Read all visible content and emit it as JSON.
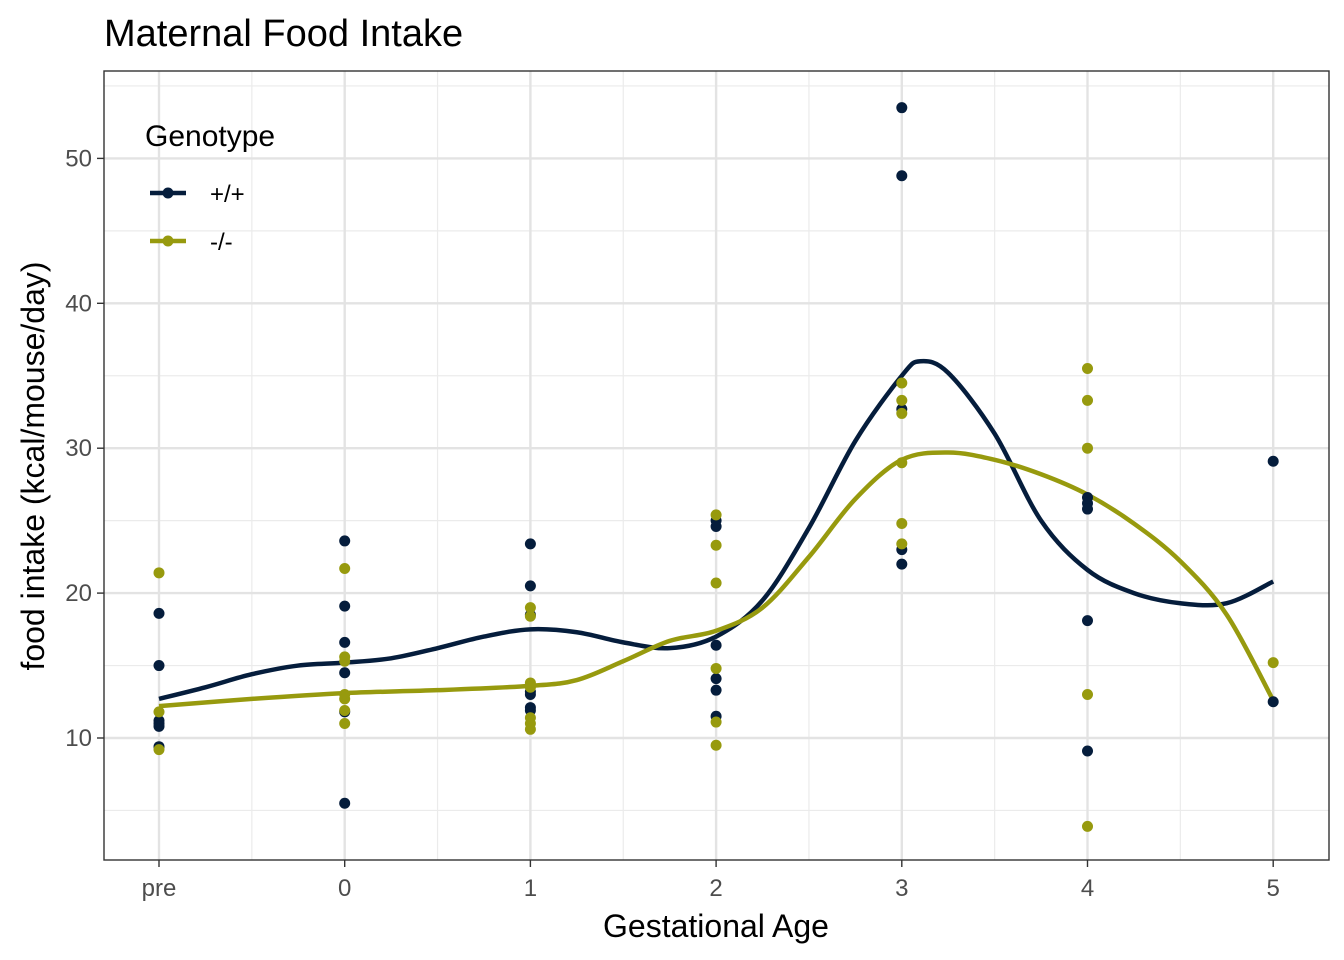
{
  "chart_data": {
    "type": "scatter",
    "title": "Maternal Food Intake",
    "xlabel": "Gestational Age",
    "ylabel": "food intake (kcal/mouse/day)",
    "categories": [
      "pre",
      "0",
      "1",
      "2",
      "3",
      "4",
      "5"
    ],
    "y_ticks": [
      10,
      20,
      30,
      40,
      50
    ],
    "ylim": [
      2.5,
      55.6
    ],
    "grid": true,
    "legend": {
      "title": "Genotype",
      "position": "top-left"
    },
    "series": [
      {
        "name": "+/+",
        "color": "#051d3c",
        "points": [
          [
            "pre",
            18.6
          ],
          [
            "pre",
            15.0
          ],
          [
            "pre",
            11.2
          ],
          [
            "pre",
            11.0
          ],
          [
            "pre",
            10.8
          ],
          [
            "pre",
            9.4
          ],
          [
            "0",
            23.6
          ],
          [
            "0",
            19.1
          ],
          [
            "0",
            16.6
          ],
          [
            "0",
            14.5
          ],
          [
            "0",
            11.8
          ],
          [
            "0",
            5.5
          ],
          [
            "1",
            23.4
          ],
          [
            "1",
            20.5
          ],
          [
            "1",
            18.5
          ],
          [
            "1",
            13.2
          ],
          [
            "1",
            13.0
          ],
          [
            "1",
            12.1
          ],
          [
            "1",
            11.9
          ],
          [
            "2",
            25.0
          ],
          [
            "2",
            24.6
          ],
          [
            "2",
            16.4
          ],
          [
            "2",
            14.1
          ],
          [
            "2",
            13.3
          ],
          [
            "2",
            11.5
          ],
          [
            "3",
            53.5
          ],
          [
            "3",
            48.8
          ],
          [
            "3",
            32.7
          ],
          [
            "3",
            23.0
          ],
          [
            "3",
            22.0
          ],
          [
            "4",
            26.6
          ],
          [
            "4",
            26.2
          ],
          [
            "4",
            25.8
          ],
          [
            "4",
            18.1
          ],
          [
            "4",
            9.1
          ],
          [
            "5",
            29.1
          ],
          [
            "5",
            12.5
          ]
        ],
        "smooth": [
          [
            0,
            12.7
          ],
          [
            0.25,
            13.5
          ],
          [
            0.5,
            14.4
          ],
          [
            0.75,
            15.0
          ],
          [
            1,
            15.2
          ],
          [
            1.25,
            15.5
          ],
          [
            1.5,
            16.2
          ],
          [
            1.75,
            17.0
          ],
          [
            2,
            17.5
          ],
          [
            2.25,
            17.3
          ],
          [
            2.5,
            16.6
          ],
          [
            2.75,
            16.2
          ],
          [
            3,
            17.0
          ],
          [
            3.25,
            19.5
          ],
          [
            3.5,
            24.5
          ],
          [
            3.75,
            30.5
          ],
          [
            4,
            35.0
          ],
          [
            4.1,
            36.0
          ],
          [
            4.25,
            35.2
          ],
          [
            4.5,
            31.0
          ],
          [
            4.75,
            25.0
          ],
          [
            5,
            21.6
          ],
          [
            5.25,
            20.0
          ],
          [
            5.5,
            19.3
          ],
          [
            5.75,
            19.3
          ],
          [
            6,
            20.8
          ]
        ]
      },
      {
        "name": "-/-",
        "color": "#979a0e",
        "points": [
          [
            "pre",
            21.4
          ],
          [
            "pre",
            11.8
          ],
          [
            "pre",
            9.2
          ],
          [
            "0",
            21.7
          ],
          [
            "0",
            15.6
          ],
          [
            "0",
            15.3
          ],
          [
            "0",
            13.0
          ],
          [
            "0",
            12.7
          ],
          [
            "0",
            11.9
          ],
          [
            "0",
            11.0
          ],
          [
            "1",
            19.0
          ],
          [
            "1",
            18.4
          ],
          [
            "1",
            13.8
          ],
          [
            "1",
            13.5
          ],
          [
            "1",
            11.4
          ],
          [
            "1",
            11.0
          ],
          [
            "1",
            10.6
          ],
          [
            "2",
            25.4
          ],
          [
            "2",
            23.3
          ],
          [
            "2",
            20.7
          ],
          [
            "2",
            14.8
          ],
          [
            "2",
            11.1
          ],
          [
            "2",
            9.5
          ],
          [
            "3",
            34.5
          ],
          [
            "3",
            33.3
          ],
          [
            "3",
            32.4
          ],
          [
            "3",
            29.0
          ],
          [
            "3",
            24.8
          ],
          [
            "3",
            23.4
          ],
          [
            "4",
            35.5
          ],
          [
            "4",
            33.3
          ],
          [
            "4",
            30.0
          ],
          [
            "4",
            13.0
          ],
          [
            "4",
            3.9
          ],
          [
            "5",
            15.2
          ]
        ],
        "smooth": [
          [
            0,
            12.2
          ],
          [
            0.5,
            12.7
          ],
          [
            1,
            13.1
          ],
          [
            1.5,
            13.3
          ],
          [
            2,
            13.6
          ],
          [
            2.25,
            14.0
          ],
          [
            2.5,
            15.3
          ],
          [
            2.75,
            16.7
          ],
          [
            3,
            17.4
          ],
          [
            3.25,
            19.0
          ],
          [
            3.5,
            22.5
          ],
          [
            3.75,
            26.5
          ],
          [
            4,
            29.2
          ],
          [
            4.25,
            29.7
          ],
          [
            4.5,
            29.2
          ],
          [
            4.75,
            28.2
          ],
          [
            5,
            26.8
          ],
          [
            5.25,
            24.8
          ],
          [
            5.5,
            22.2
          ],
          [
            5.75,
            18.5
          ],
          [
            6,
            12.6
          ]
        ]
      }
    ]
  }
}
